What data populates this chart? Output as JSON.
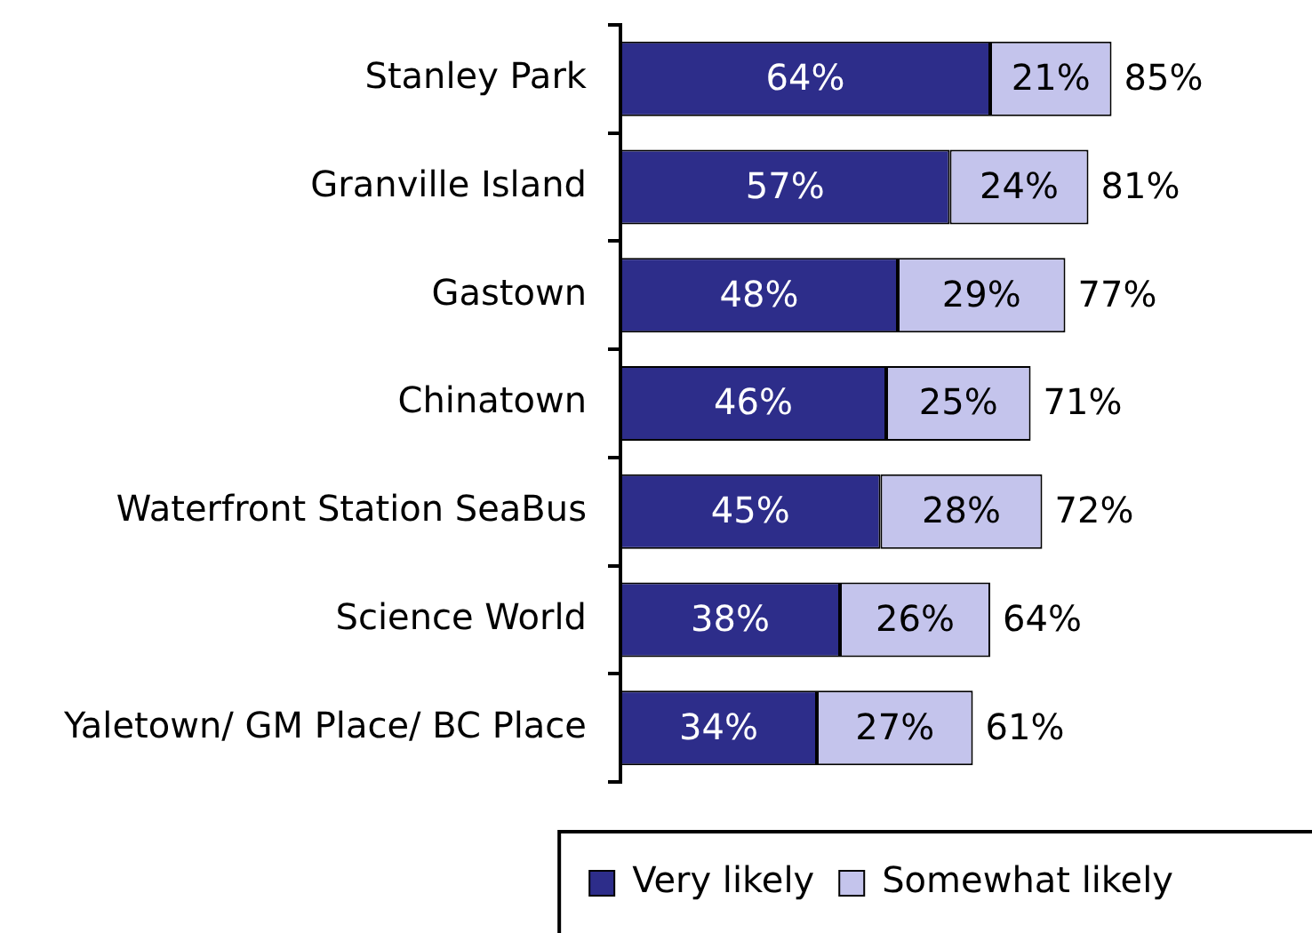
{
  "chart_data": {
    "type": "bar",
    "orientation": "horizontal",
    "stacked": true,
    "categories": [
      "Stanley Park",
      "Granville Island",
      "Gastown",
      "Chinatown",
      "Waterfront Station SeaBus",
      "Science World",
      "Yaletown/ GM Place/ BC Place"
    ],
    "series": [
      {
        "name": "Very likely",
        "color": "#2d2d8a",
        "values": [
          64,
          57,
          48,
          46,
          45,
          38,
          34
        ],
        "value_labels": [
          "64%",
          "57%",
          "48%",
          "46%",
          "45%",
          "38%",
          "34%"
        ]
      },
      {
        "name": "Somewhat likely",
        "color": "#c4c4ec",
        "values": [
          21,
          24,
          29,
          25,
          28,
          26,
          27
        ],
        "value_labels": [
          "21%",
          "24%",
          "29%",
          "25%",
          "28%",
          "26%",
          "27%"
        ]
      }
    ],
    "totals": [
      "85%",
      "81%",
      "77%",
      "71%",
      "72%",
      "64%",
      "61%"
    ],
    "tick_labels": "y",
    "legend": "bottom right"
  }
}
